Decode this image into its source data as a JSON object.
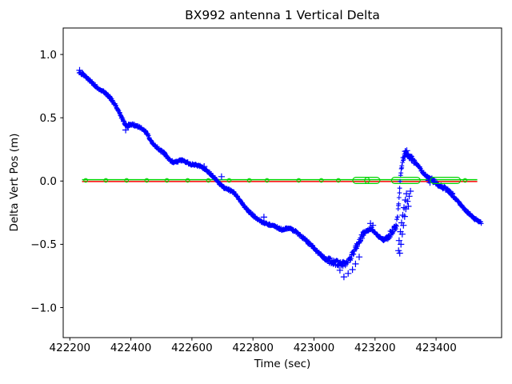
{
  "chart_data": {
    "type": "scatter",
    "title": "BX992 antenna 1 Vertical Delta",
    "xlabel": "Time (sec)",
    "ylabel": "Delta Vert Pos (m)",
    "xlim": [
      422178,
      423615
    ],
    "ylim": [
      -1.237,
      1.209
    ],
    "x_ticks": [
      422200,
      422400,
      422600,
      422800,
      423000,
      423200,
      423400
    ],
    "y_ticks": [
      1.0,
      0.5,
      0.0,
      -0.5,
      -1.0
    ],
    "grid": false,
    "legend": "none",
    "main_series": {
      "name": "antenna-1-vertical-delta",
      "marker": "+",
      "color": "#0000ff",
      "t_start": 422230,
      "t_end": 423548,
      "step": 1.2,
      "anchors": [
        [
          422230,
          0.855
        ],
        [
          422242,
          0.845
        ],
        [
          422255,
          0.815
        ],
        [
          422268,
          0.79
        ],
        [
          422280,
          0.76
        ],
        [
          422292,
          0.735
        ],
        [
          422305,
          0.715
        ],
        [
          422318,
          0.69
        ],
        [
          422330,
          0.665
        ],
        [
          422342,
          0.625
        ],
        [
          422352,
          0.585
        ],
        [
          422362,
          0.545
        ],
        [
          422371,
          0.5
        ],
        [
          422380,
          0.45
        ],
        [
          422388,
          0.435
        ],
        [
          422398,
          0.445
        ],
        [
          422408,
          0.445
        ],
        [
          422420,
          0.435
        ],
        [
          422432,
          0.42
        ],
        [
          422444,
          0.4
        ],
        [
          422455,
          0.365
        ],
        [
          422465,
          0.32
        ],
        [
          422475,
          0.285
        ],
        [
          422486,
          0.265
        ],
        [
          422497,
          0.24
        ],
        [
          422508,
          0.225
        ],
        [
          422518,
          0.19
        ],
        [
          422529,
          0.16
        ],
        [
          422541,
          0.15
        ],
        [
          422553,
          0.155
        ],
        [
          422565,
          0.165
        ],
        [
          422577,
          0.155
        ],
        [
          422590,
          0.14
        ],
        [
          422603,
          0.13
        ],
        [
          422616,
          0.125
        ],
        [
          422629,
          0.115
        ],
        [
          422642,
          0.095
        ],
        [
          422655,
          0.07
        ],
        [
          422668,
          0.04
        ],
        [
          422680,
          0.01
        ],
        [
          422692,
          -0.025
        ],
        [
          422704,
          -0.05
        ],
        [
          422717,
          -0.065
        ],
        [
          422730,
          -0.08
        ],
        [
          422742,
          -0.1
        ],
        [
          422756,
          -0.15
        ],
        [
          422770,
          -0.195
        ],
        [
          422784,
          -0.235
        ],
        [
          422798,
          -0.265
        ],
        [
          422812,
          -0.295
        ],
        [
          422826,
          -0.32
        ],
        [
          422840,
          -0.335
        ],
        [
          422854,
          -0.345
        ],
        [
          422868,
          -0.355
        ],
        [
          422882,
          -0.37
        ],
        [
          422896,
          -0.385
        ],
        [
          422910,
          -0.375
        ],
        [
          422924,
          -0.38
        ],
        [
          422938,
          -0.395
        ],
        [
          422952,
          -0.425
        ],
        [
          422966,
          -0.45
        ],
        [
          422980,
          -0.485
        ],
        [
          422994,
          -0.515
        ],
        [
          423008,
          -0.55
        ],
        [
          423022,
          -0.585
        ],
        [
          423036,
          -0.615
        ],
        [
          423050,
          -0.63
        ],
        [
          423064,
          -0.64
        ],
        [
          423078,
          -0.65
        ],
        [
          423092,
          -0.66
        ],
        [
          423106,
          -0.65
        ],
        [
          423118,
          -0.615
        ],
        [
          423129,
          -0.565
        ],
        [
          423139,
          -0.52
        ],
        [
          423149,
          -0.475
        ],
        [
          423159,
          -0.43
        ],
        [
          423169,
          -0.4
        ],
        [
          423179,
          -0.385
        ],
        [
          423189,
          -0.375
        ],
        [
          423199,
          -0.405
        ],
        [
          423209,
          -0.43
        ],
        [
          423219,
          -0.45
        ],
        [
          423229,
          -0.465
        ],
        [
          423239,
          -0.445
        ],
        [
          423249,
          -0.42
        ],
        [
          423258,
          -0.395
        ],
        [
          423266,
          -0.37
        ],
        [
          423271,
          -0.33
        ],
        [
          423275,
          -0.24
        ],
        [
          423279,
          -0.12
        ],
        [
          423283,
          0.02
        ],
        [
          423287,
          0.12
        ],
        [
          423291,
          0.17
        ],
        [
          423296,
          0.2
        ],
        [
          423302,
          0.215
        ],
        [
          423308,
          0.205
        ],
        [
          423314,
          0.19
        ],
        [
          423321,
          0.175
        ],
        [
          423329,
          0.155
        ],
        [
          423337,
          0.13
        ],
        [
          423346,
          0.105
        ],
        [
          423355,
          0.075
        ],
        [
          423364,
          0.05
        ],
        [
          423374,
          0.03
        ],
        [
          423384,
          0.012
        ],
        [
          423394,
          0.0
        ],
        [
          423406,
          -0.028
        ],
        [
          423418,
          -0.045
        ],
        [
          423430,
          -0.06
        ],
        [
          423442,
          -0.085
        ],
        [
          423454,
          -0.11
        ],
        [
          423466,
          -0.145
        ],
        [
          423478,
          -0.18
        ],
        [
          423490,
          -0.215
        ],
        [
          423502,
          -0.245
        ],
        [
          423514,
          -0.272
        ],
        [
          423526,
          -0.298
        ],
        [
          423538,
          -0.315
        ],
        [
          423548,
          -0.33
        ]
      ],
      "outliers": [
        [
          422232,
          0.875
        ],
        [
          422383,
          0.403
        ],
        [
          422509,
          0.215
        ],
        [
          422640,
          0.115
        ],
        [
          422697,
          0.035
        ],
        [
          422836,
          -0.285
        ],
        [
          423085,
          -0.705
        ],
        [
          423098,
          -0.757
        ],
        [
          423112,
          -0.73
        ],
        [
          423126,
          -0.7
        ],
        [
          423136,
          -0.655
        ],
        [
          423148,
          -0.6
        ],
        [
          423185,
          -0.335
        ],
        [
          423193,
          -0.35
        ],
        [
          423277,
          -0.55
        ],
        [
          423279,
          -0.47
        ],
        [
          423281,
          -0.57
        ],
        [
          423283,
          -0.4
        ],
        [
          423285,
          -0.5
        ],
        [
          423287,
          -0.33
        ],
        [
          423289,
          -0.42
        ],
        [
          423291,
          -0.27
        ],
        [
          423293,
          -0.35
        ],
        [
          423295,
          -0.21
        ],
        [
          423297,
          -0.28
        ],
        [
          423299,
          -0.15
        ],
        [
          423301,
          -0.22
        ],
        [
          423303,
          -0.1
        ],
        [
          423306,
          -0.16
        ],
        [
          423309,
          -0.2
        ],
        [
          423312,
          -0.12
        ],
        [
          423316,
          -0.08
        ],
        [
          423299,
          0.235
        ],
        [
          423304,
          0.24
        ],
        [
          423376,
          0.005
        ],
        [
          423380,
          -0.012
        ],
        [
          423386,
          0.018
        ],
        [
          423390,
          -0.005
        ]
      ],
      "noise": {
        "base": 0.009,
        "zones": [
          [
            422365,
            422400,
            0.014
          ],
          [
            422955,
            423045,
            0.012
          ],
          [
            423045,
            423165,
            0.024
          ],
          [
            423236,
            423275,
            0.03
          ],
          [
            423275,
            423332,
            0.02
          ],
          [
            423390,
            423460,
            0.016
          ]
        ]
      }
    },
    "zero_reference": {
      "red_line": {
        "name": "zero-line-red",
        "color": "#ff0000",
        "y": 0.0,
        "t_start": 422240,
        "t_end": 423535
      },
      "green_line": {
        "name": "zero-line-green",
        "color": "#00d400",
        "y": 0.0,
        "t_start": 422240,
        "t_end": 423535
      },
      "green_circle_times": [
        422252,
        422318,
        422386,
        422452,
        422518,
        422586,
        422654,
        422722,
        422788,
        422846,
        422950,
        423024,
        423080,
        423495
      ],
      "green_cluster_ranges": [
        [
          423137,
          423172
        ],
        [
          423176,
          423206
        ],
        [
          423264,
          423338
        ],
        [
          423391,
          423470
        ]
      ]
    }
  }
}
